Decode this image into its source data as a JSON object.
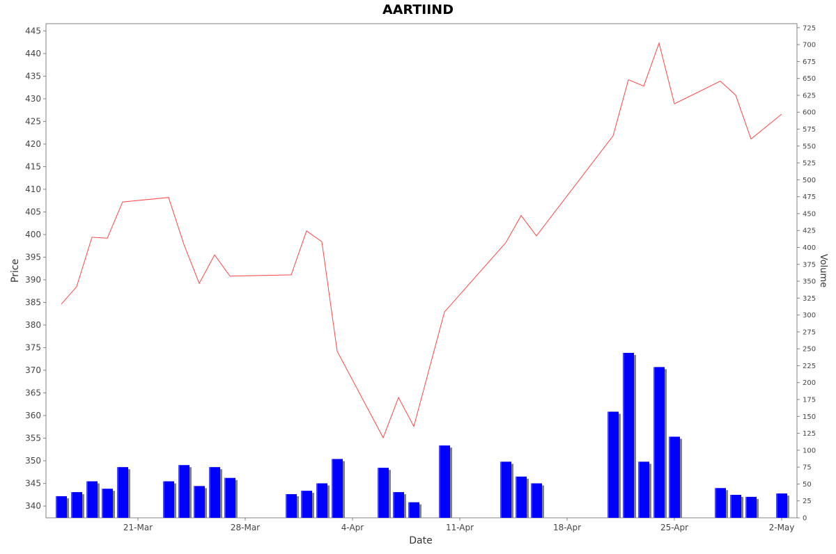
{
  "chart_data": {
    "type": "bar+line",
    "title": "AARTIIND",
    "xlabel": "Date",
    "ylabel_left": "Price",
    "ylabel_right": "Volume",
    "x_ticks": [
      "21-Mar",
      "28-Mar",
      "4-Apr",
      "11-Apr",
      "18-Apr",
      "25-Apr",
      "2-May"
    ],
    "price_axis": {
      "min": 337.4,
      "max": 446.6,
      "ticks": [
        340,
        345,
        350,
        355,
        360,
        365,
        370,
        375,
        380,
        385,
        390,
        395,
        400,
        405,
        410,
        415,
        420,
        425,
        430,
        435,
        440,
        445
      ]
    },
    "volume_axis": {
      "min": 0,
      "max": 731,
      "ticks": [
        0,
        25,
        50,
        75,
        100,
        125,
        150,
        175,
        200,
        225,
        250,
        275,
        300,
        325,
        350,
        375,
        400,
        425,
        450,
        475,
        500,
        525,
        550,
        575,
        600,
        625,
        650,
        675,
        700,
        725
      ]
    },
    "price_series": {
      "color": "#ff4444",
      "points": [
        [
          "2022-03-16",
          384.6
        ],
        [
          "2022-03-17",
          388.5
        ],
        [
          "2022-03-18",
          399.4
        ],
        [
          "2022-03-19",
          399.2
        ],
        [
          "2022-03-20",
          407.2
        ],
        [
          "2022-03-23",
          408.2
        ],
        [
          "2022-03-24",
          397.8
        ],
        [
          "2022-03-25",
          389.2
        ],
        [
          "2022-03-26",
          395.5
        ],
        [
          "2022-03-27",
          390.8
        ],
        [
          "2022-03-31",
          391.1
        ],
        [
          "2022-04-01",
          400.8
        ],
        [
          "2022-04-02",
          398.4
        ],
        [
          "2022-04-03",
          374.2
        ],
        [
          "2022-04-06",
          355.1
        ],
        [
          "2022-04-07",
          364.0
        ],
        [
          "2022-04-08",
          357.6
        ],
        [
          "2022-04-10",
          382.9
        ],
        [
          "2022-04-14",
          398.2
        ],
        [
          "2022-04-15",
          404.2
        ],
        [
          "2022-04-16",
          399.7
        ],
        [
          "2022-04-21",
          421.8
        ],
        [
          "2022-04-22",
          434.2
        ],
        [
          "2022-04-23",
          432.8
        ],
        [
          "2022-04-24",
          442.3
        ],
        [
          "2022-04-25",
          428.9
        ],
        [
          "2022-04-28",
          433.9
        ],
        [
          "2022-04-29",
          430.8
        ],
        [
          "2022-04-30",
          421.1
        ],
        [
          "2022-05-02",
          426.6
        ]
      ]
    },
    "volume_series": {
      "colors": {
        "bar": "#0000ff",
        "shadow": "#808080"
      },
      "points": [
        [
          "2022-03-16",
          32
        ],
        [
          "2022-03-17",
          38
        ],
        [
          "2022-03-18",
          54
        ],
        [
          "2022-03-19",
          43
        ],
        [
          "2022-03-20",
          75
        ],
        [
          "2022-03-23",
          54
        ],
        [
          "2022-03-24",
          78
        ],
        [
          "2022-03-25",
          47
        ],
        [
          "2022-03-26",
          75
        ],
        [
          "2022-03-27",
          59
        ],
        [
          "2022-03-31",
          35
        ],
        [
          "2022-04-01",
          40
        ],
        [
          "2022-04-02",
          51
        ],
        [
          "2022-04-03",
          87
        ],
        [
          "2022-04-06",
          74
        ],
        [
          "2022-04-07",
          38
        ],
        [
          "2022-04-08",
          23
        ],
        [
          "2022-04-10",
          107
        ],
        [
          "2022-04-14",
          83
        ],
        [
          "2022-04-15",
          61
        ],
        [
          "2022-04-16",
          51
        ],
        [
          "2022-04-21",
          157
        ],
        [
          "2022-04-22",
          244
        ],
        [
          "2022-04-23",
          83
        ],
        [
          "2022-04-24",
          223
        ],
        [
          "2022-04-25",
          120
        ],
        [
          "2022-04-28",
          44
        ],
        [
          "2022-04-29",
          34
        ],
        [
          "2022-04-30",
          31
        ],
        [
          "2022-05-02",
          36
        ]
      ]
    },
    "x_tick_dates": [
      "2022-03-21",
      "2022-03-28",
      "2022-04-04",
      "2022-04-11",
      "2022-04-18",
      "2022-04-25",
      "2022-05-02"
    ],
    "x_range": [
      "2022-03-15",
      "2022-05-03"
    ],
    "grid": false
  }
}
